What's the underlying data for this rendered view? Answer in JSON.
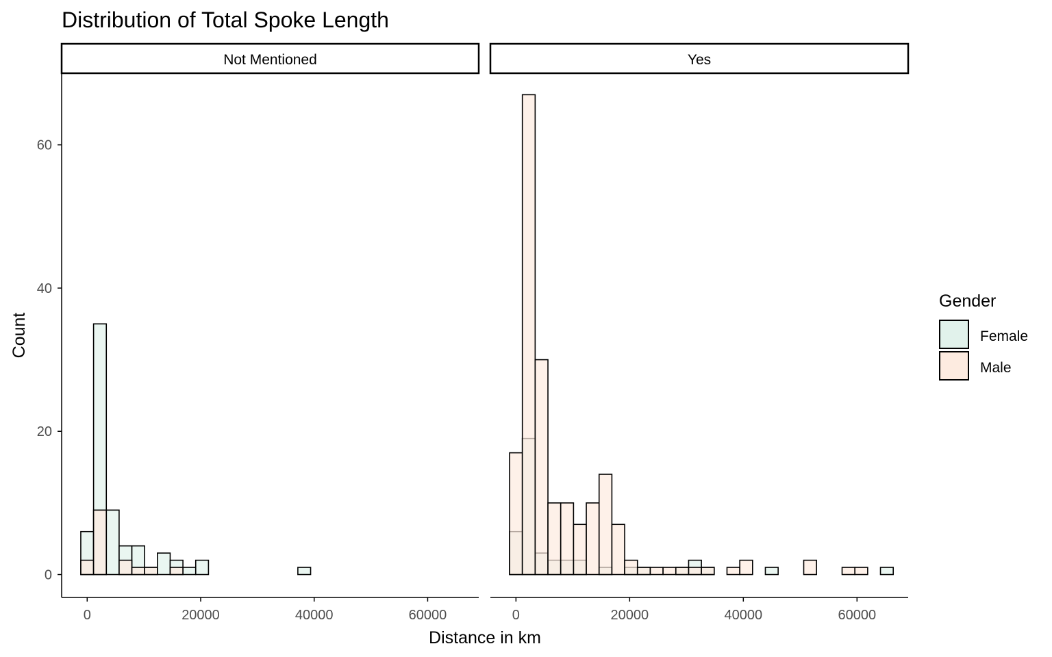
{
  "chart_data": {
    "type": "bar",
    "title": "Distribution of Total Spoke Length",
    "xlabel": "Distance in km",
    "ylabel": "Count",
    "xlim": [
      -4500,
      69000
    ],
    "ylim": [
      -3.2,
      70
    ],
    "x_ticks": [
      0,
      20000,
      40000,
      60000
    ],
    "y_ticks": [
      0,
      20,
      40,
      60
    ],
    "bin_width": 2250,
    "bin_centers": [
      0,
      2250,
      4500,
      6750,
      9000,
      11250,
      13500,
      15750,
      18000,
      20250,
      22500,
      24750,
      27000,
      29250,
      31500,
      33750,
      36000,
      38250,
      40500,
      42750,
      45000,
      47250,
      49500,
      51750,
      54000,
      56250,
      58500,
      60750,
      63000,
      65250
    ],
    "grid": false,
    "legend": {
      "title": "Gender",
      "position": "right",
      "items": [
        {
          "name": "Female",
          "color": "#e1f2eb"
        },
        {
          "name": "Male",
          "color": "#fdebe0"
        }
      ]
    },
    "facets": [
      {
        "label": "Not Mentioned",
        "series": [
          {
            "name": "Female",
            "values": [
              6,
              35,
              9,
              4,
              4,
              1,
              3,
              2,
              1,
              2,
              0,
              0,
              0,
              0,
              0,
              0,
              0,
              1,
              0,
              0,
              0,
              0,
              0,
              0,
              0,
              0,
              0,
              0,
              0,
              0
            ]
          },
          {
            "name": "Male",
            "values": [
              2,
              9,
              0,
              2,
              1,
              1,
              0,
              1,
              0,
              0,
              0,
              0,
              0,
              0,
              0,
              0,
              0,
              0,
              0,
              0,
              0,
              0,
              0,
              0,
              0,
              0,
              0,
              0,
              0,
              0
            ]
          }
        ]
      },
      {
        "label": "Yes",
        "series": [
          {
            "name": "Female",
            "values": [
              6,
              19,
              3,
              2,
              2,
              2,
              0,
              1,
              0,
              1,
              1,
              0,
              0,
              1,
              2,
              1,
              0,
              0,
              0,
              0,
              1,
              0,
              0,
              0,
              0,
              0,
              0,
              0,
              0,
              1
            ]
          },
          {
            "name": "Male",
            "values": [
              17,
              67,
              30,
              10,
              10,
              7,
              10,
              14,
              7,
              2,
              1,
              1,
              1,
              1,
              1,
              1,
              0,
              1,
              2,
              0,
              0,
              0,
              0,
              2,
              0,
              0,
              1,
              1,
              0,
              0
            ]
          }
        ]
      }
    ]
  }
}
